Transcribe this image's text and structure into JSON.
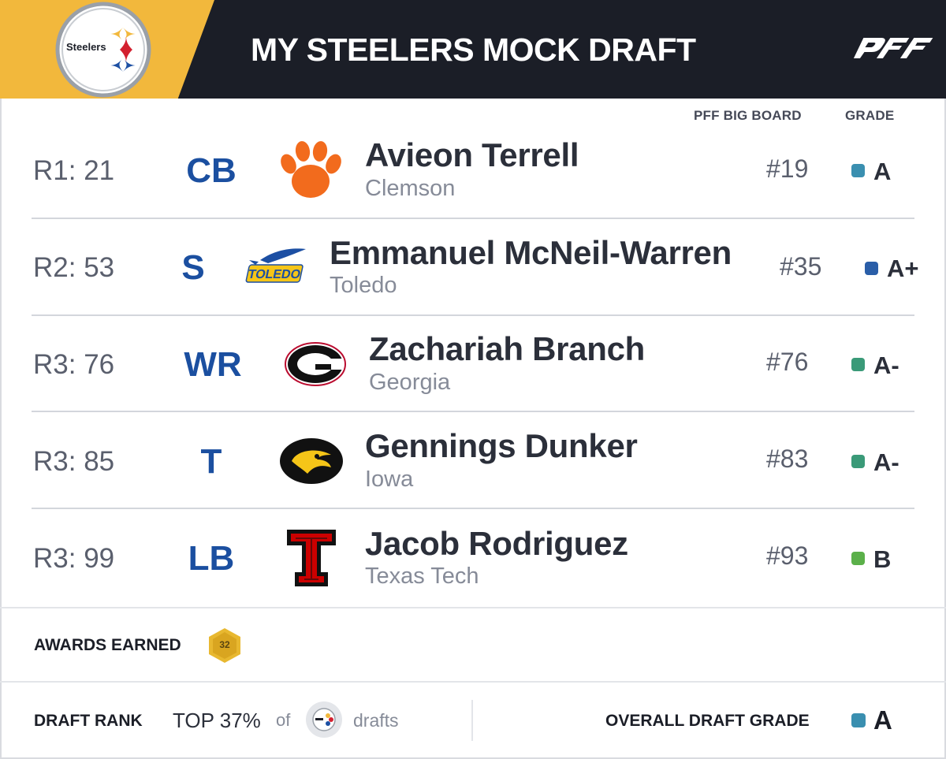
{
  "header": {
    "team_logo_text": "Steelers",
    "title": "MY STEELERS MOCK DRAFT",
    "brand": "PFF",
    "colors": {
      "gold": "#f2b83c",
      "dark": "#1b1e27"
    }
  },
  "columns": {
    "big_board": "PFF BIG BOARD",
    "grade": "GRADE"
  },
  "picks": [
    {
      "pick": "R1: 21",
      "position": "CB",
      "name": "Avieon Terrell",
      "school": "Clemson",
      "school_logo": "clemson-paw-icon",
      "board_rank": "#19",
      "grade": "A",
      "grade_color": "#3a8fb0"
    },
    {
      "pick": "R2: 53",
      "position": "S",
      "name": "Emmanuel McNeil-Warren",
      "school": "Toledo",
      "school_logo": "toledo-rocket-icon",
      "board_rank": "#35",
      "grade": "A+",
      "grade_color": "#2a5ea8"
    },
    {
      "pick": "R3: 76",
      "position": "WR",
      "name": "Zachariah Branch",
      "school": "Georgia",
      "school_logo": "georgia-g-icon",
      "board_rank": "#76",
      "grade": "A-",
      "grade_color": "#3a9a78"
    },
    {
      "pick": "R3: 85",
      "position": "T",
      "name": "Gennings Dunker",
      "school": "Iowa",
      "school_logo": "iowa-hawkeye-icon",
      "board_rank": "#83",
      "grade": "A-",
      "grade_color": "#3a9a78"
    },
    {
      "pick": "R3: 99",
      "position": "LB",
      "name": "Jacob Rodriguez",
      "school": "Texas Tech",
      "school_logo": "texas-tech-double-t-icon",
      "board_rank": "#93",
      "grade": "B",
      "grade_color": "#5bb04a"
    }
  ],
  "awards": {
    "label": "AWARDS EARNED",
    "badge_value": "32"
  },
  "footer": {
    "rank_label": "DRAFT RANK",
    "top_text": "TOP 37%",
    "of_text": "of",
    "drafts_text": "drafts",
    "overall_label": "OVERALL DRAFT GRADE",
    "overall_grade": "A",
    "overall_color": "#3a8fb0"
  }
}
